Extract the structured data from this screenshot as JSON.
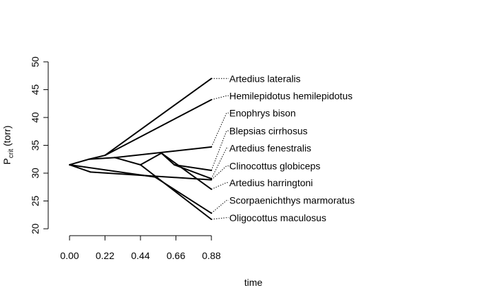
{
  "chart_data": {
    "type": "line",
    "subtype": "phylogenetic-traitgram",
    "xlabel": "time",
    "ylabel_main": "P",
    "ylabel_sub": "crit",
    "ylabel_unit": " (torr)",
    "xlim": [
      0,
      0.88
    ],
    "ylim": [
      20,
      50
    ],
    "x_ticks": [
      0.0,
      0.22,
      0.44,
      0.66,
      0.88
    ],
    "x_tick_labels": [
      "0.00",
      "0.22",
      "0.44",
      "0.66",
      "0.88"
    ],
    "y_ticks": [
      20,
      25,
      30,
      35,
      40,
      45,
      50
    ],
    "y_tick_labels": [
      "20",
      "25",
      "30",
      "35",
      "40",
      "45",
      "50"
    ],
    "nodes": {
      "root": [
        0.0,
        31.5
      ],
      "n1": [
        0.12,
        32.5
      ],
      "n2": [
        0.22,
        33.2
      ],
      "n3": [
        0.28,
        32.8
      ],
      "n4": [
        0.44,
        31.5
      ],
      "n5": [
        0.57,
        33.6
      ],
      "n6": [
        0.65,
        31.5
      ],
      "n7": [
        0.53,
        29.3
      ],
      "n8": [
        0.13,
        30.2
      ]
    },
    "branches": [
      [
        "root",
        "n1"
      ],
      [
        "n1",
        "n2"
      ],
      [
        "n2",
        "Artedius lateralis"
      ],
      [
        "n2",
        "Hemilepidotus hemilepidotus"
      ],
      [
        "n1",
        "n3"
      ],
      [
        "n3",
        "n4"
      ],
      [
        "n3",
        "Enophrys bison"
      ],
      [
        "n4",
        "n5"
      ],
      [
        "n5",
        "Artedius harringtoni"
      ],
      [
        "n5",
        "n6"
      ],
      [
        "n6",
        "Blepsias cirrhosus"
      ],
      [
        "n6",
        "Artedius fenestralis"
      ],
      [
        "n4",
        "Oligocottus maculosus"
      ],
      [
        "root",
        "n8"
      ],
      [
        "n8",
        "Clinocottus globiceps"
      ],
      [
        "root",
        "n7"
      ],
      [
        "n7",
        "Scorpaenichthys marmoratus"
      ]
    ],
    "tips": [
      {
        "name": "Artedius lateralis",
        "x": 0.88,
        "y": 47.0,
        "label_y": 47.0
      },
      {
        "name": "Hemilepidotus hemilepidotus",
        "x": 0.88,
        "y": 43.2,
        "label_y": 43.9
      },
      {
        "name": "Enophrys bison",
        "x": 0.88,
        "y": 34.7,
        "label_y": 40.8
      },
      {
        "name": "Blepsias cirrhosus",
        "x": 0.88,
        "y": 30.5,
        "label_y": 37.6
      },
      {
        "name": "Artedius fenestralis",
        "x": 0.88,
        "y": 29.0,
        "label_y": 34.5
      },
      {
        "name": "Clinocottus globiceps",
        "x": 0.88,
        "y": 28.8,
        "label_y": 31.3
      },
      {
        "name": "Artedius harringtoni",
        "x": 0.88,
        "y": 27.1,
        "label_y": 28.3
      },
      {
        "name": "Scorpaenichthys marmoratus",
        "x": 0.88,
        "y": 22.8,
        "label_y": 25.1
      },
      {
        "name": "Oligocottus maculosus",
        "x": 0.88,
        "y": 21.7,
        "label_y": 22.0
      }
    ]
  }
}
